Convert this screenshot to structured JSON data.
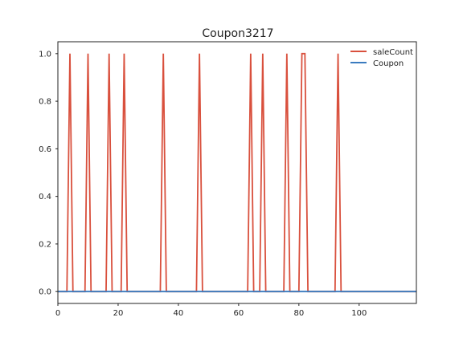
{
  "chart_data": {
    "type": "line",
    "title": "Coupon3217",
    "xlabel": "",
    "ylabel": "",
    "xlim": [
      0,
      119
    ],
    "ylim": [
      -0.05,
      1.05
    ],
    "grid": false,
    "legend_position": "top-right",
    "x_ticks": [
      0,
      20,
      40,
      60,
      80,
      100
    ],
    "y_ticks": [
      0.0,
      0.2,
      0.4,
      0.6,
      0.8,
      1.0
    ],
    "x_tick_labels": [
      "0",
      "20",
      "40",
      "60",
      "80",
      "100"
    ],
    "y_tick_labels": [
      "0.0",
      "0.2",
      "0.4",
      "0.6",
      "0.8",
      "1.0"
    ],
    "series": [
      {
        "name": "saleCount",
        "color": "#d9503d",
        "x": [
          0,
          3,
          4,
          5,
          9,
          10,
          11,
          16,
          17,
          18,
          21,
          22,
          23,
          34,
          35,
          36,
          46,
          47,
          48,
          63,
          64,
          65,
          67,
          68,
          69,
          75,
          76,
          77,
          80,
          81,
          82,
          83,
          92,
          93,
          94,
          119
        ],
        "values": [
          0,
          0,
          1,
          0,
          0,
          1,
          0,
          0,
          1,
          0,
          0,
          1,
          0,
          0,
          1,
          0,
          0,
          1,
          0,
          0,
          1,
          0,
          0,
          1,
          0,
          0,
          1,
          0,
          0,
          1,
          1,
          0,
          0,
          1,
          0,
          0
        ]
      },
      {
        "name": "Coupon",
        "color": "#3a7bbf",
        "x": [
          0,
          119
        ],
        "values": [
          0,
          0
        ]
      }
    ]
  }
}
